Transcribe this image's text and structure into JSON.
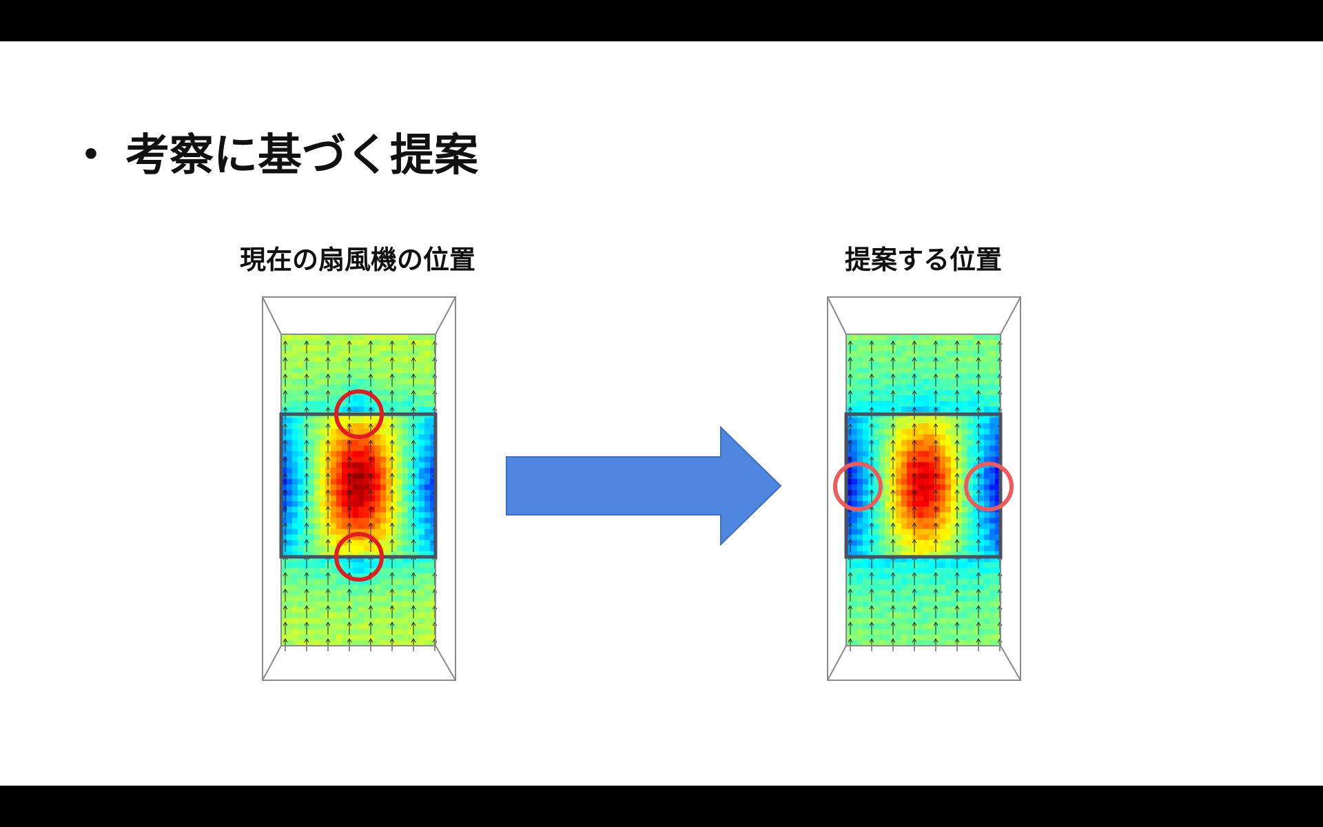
{
  "slide": {
    "bullet": "・",
    "title": "考察に基づく提案"
  },
  "panels": {
    "left_label": "現在の扇風機の位置",
    "right_label": "提案する位置"
  },
  "colors": {
    "arrow": "#4f86e0",
    "marker_left": "#e31b23",
    "marker_right": "#f05a5a",
    "fan_frame": "#4a5060",
    "outline": "#8a8a8a"
  }
}
